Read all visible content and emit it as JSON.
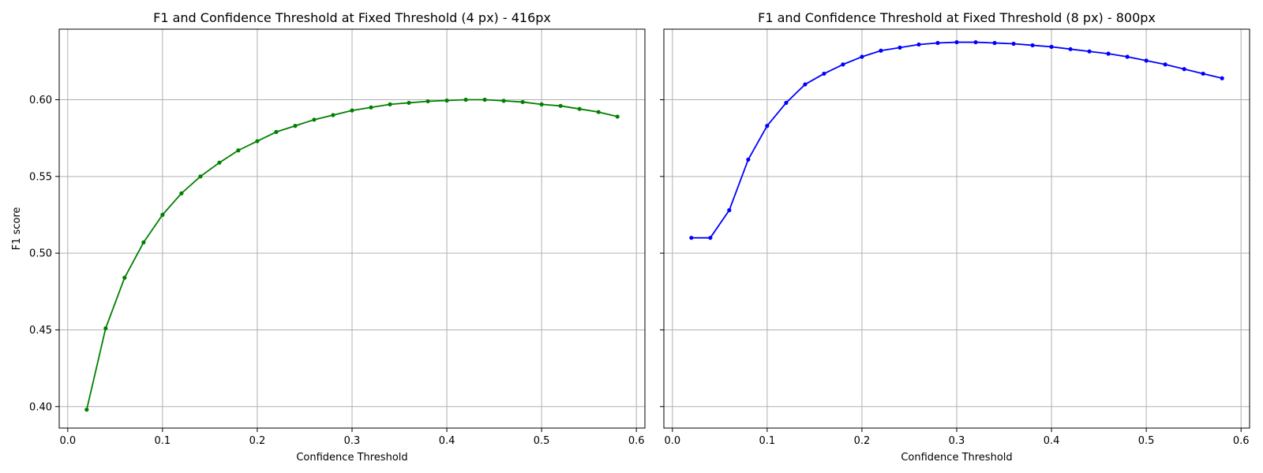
{
  "chart_data": [
    {
      "type": "line",
      "title": "F1 and Confidence Threshold at Fixed Threshold (4 px) - 416px",
      "xlabel": "Confidence Threshold",
      "ylabel": "F1 score",
      "xlim": [
        -0.009,
        0.609
      ],
      "ylim": [
        0.386,
        0.646
      ],
      "xticks": [
        "0.0",
        "0.1",
        "0.2",
        "0.3",
        "0.4",
        "0.5",
        "0.6"
      ],
      "yticks": [
        "0.40",
        "0.45",
        "0.50",
        "0.55",
        "0.60"
      ],
      "grid": true,
      "color": "#008000",
      "series": [
        {
          "x": [
            0.02,
            0.04,
            0.06,
            0.08,
            0.1,
            0.12,
            0.14,
            0.16,
            0.18,
            0.2,
            0.22,
            0.24,
            0.26,
            0.28,
            0.3,
            0.32,
            0.34,
            0.36,
            0.38,
            0.4,
            0.42,
            0.44,
            0.46,
            0.48,
            0.5,
            0.52,
            0.54,
            0.56,
            0.58
          ],
          "values": [
            0.398,
            0.451,
            0.484,
            0.507,
            0.525,
            0.539,
            0.55,
            0.559,
            0.567,
            0.573,
            0.579,
            0.583,
            0.587,
            0.59,
            0.593,
            0.595,
            0.597,
            0.598,
            0.599,
            0.5995,
            0.6,
            0.6,
            0.5993,
            0.5985,
            0.597,
            0.596,
            0.594,
            0.592,
            0.589
          ]
        }
      ]
    },
    {
      "type": "line",
      "title": "F1 and Confidence Threshold at Fixed Threshold (8 px) - 800px",
      "xlabel": "Confidence Threshold",
      "ylabel": "",
      "xlim": [
        -0.009,
        0.609
      ],
      "ylim": [
        0.386,
        0.646
      ],
      "xticks": [
        "0.0",
        "0.1",
        "0.2",
        "0.3",
        "0.4",
        "0.5",
        "0.6"
      ],
      "yticks": [],
      "grid": true,
      "color": "#0000ff",
      "series": [
        {
          "x": [
            0.02,
            0.04,
            0.06,
            0.08,
            0.1,
            0.12,
            0.14,
            0.16,
            0.18,
            0.2,
            0.22,
            0.24,
            0.26,
            0.28,
            0.3,
            0.32,
            0.34,
            0.36,
            0.38,
            0.4,
            0.42,
            0.44,
            0.46,
            0.48,
            0.5,
            0.52,
            0.54,
            0.56,
            0.58
          ],
          "values": [
            0.51,
            0.51,
            0.528,
            0.561,
            0.583,
            0.598,
            0.61,
            0.617,
            0.623,
            0.628,
            0.632,
            0.634,
            0.636,
            0.637,
            0.6375,
            0.6375,
            0.637,
            0.6365,
            0.6355,
            0.6345,
            0.633,
            0.6315,
            0.63,
            0.628,
            0.6255,
            0.623,
            0.62,
            0.617,
            0.614
          ]
        }
      ]
    }
  ]
}
